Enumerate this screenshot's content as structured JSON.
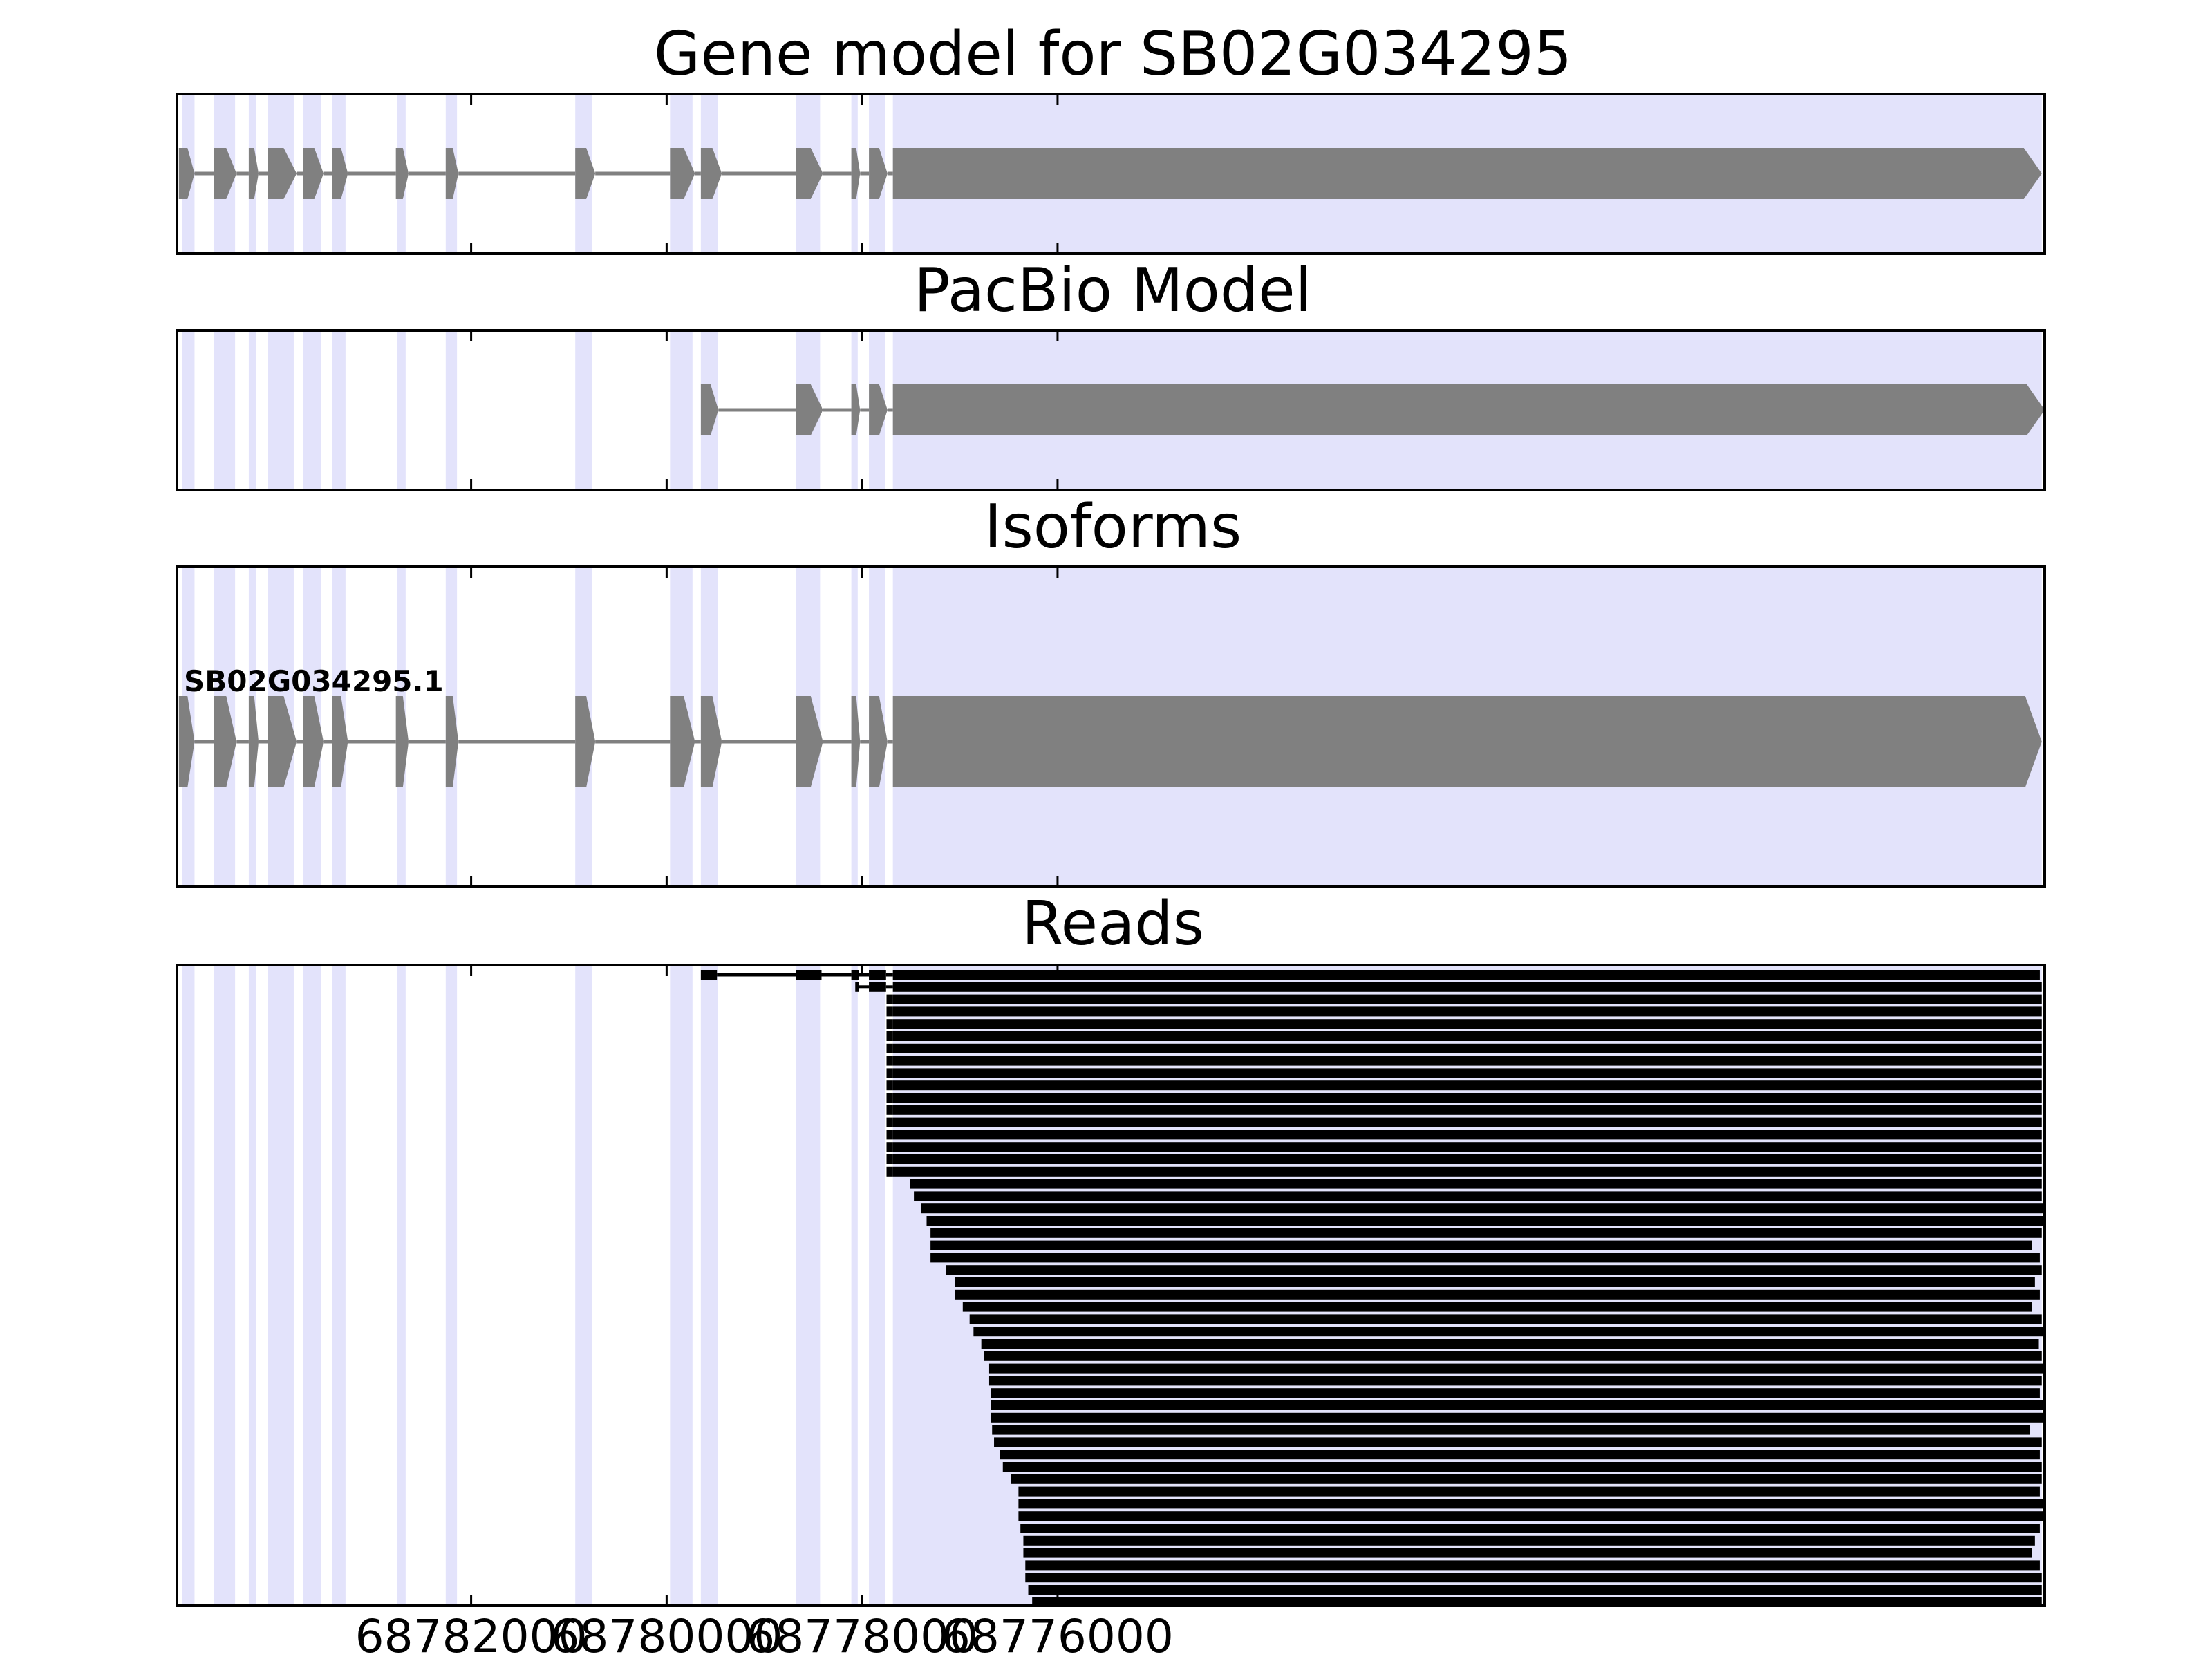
{
  "chart_data": {
    "type": "gene_model_tracks",
    "x_axis": {
      "range": [
        68785010,
        68765900
      ],
      "reversed": true,
      "ticks": [
        68782000,
        68780000,
        68778000,
        68776000
      ],
      "tick_labels": [
        "68782000",
        "68780000",
        "68778000",
        "68776000"
      ]
    },
    "exon_shading_color": "#e3e3fb",
    "feature_color": "#808080",
    "read_color": "#000000",
    "exon_regions": [
      [
        68784960,
        68784830
      ],
      [
        68784635,
        68784415
      ],
      [
        68784275,
        68784200
      ],
      [
        68784080,
        68783815
      ],
      [
        68783720,
        68783535
      ],
      [
        68783420,
        68783285
      ],
      [
        68782760,
        68782670
      ],
      [
        68782260,
        68782145
      ],
      [
        68780935,
        68780760
      ],
      [
        68779965,
        68779735
      ],
      [
        68779650,
        68779475
      ],
      [
        68778680,
        68778430
      ],
      [
        68778110,
        68778045
      ],
      [
        68777930,
        68777765
      ],
      [
        68777685,
        68765930
      ]
    ],
    "panels": [
      {
        "title": "Gene model for SB02G034295",
        "exons": [
          [
            68784990,
            68784830
          ],
          [
            68784635,
            68784400
          ],
          [
            68784275,
            68784175
          ],
          [
            68784080,
            68783785
          ],
          [
            68783720,
            68783510
          ],
          [
            68783420,
            68783260
          ],
          [
            68782770,
            68782640
          ],
          [
            68782260,
            68782130
          ],
          [
            68780935,
            68780730
          ],
          [
            68779965,
            68779710
          ],
          [
            68779650,
            68779435
          ],
          [
            68778680,
            68778400
          ],
          [
            68778110,
            68778020
          ],
          [
            68777930,
            68777740
          ],
          [
            68777685,
            68765930
          ]
        ]
      },
      {
        "title": "PacBio Model",
        "exons": [
          [
            68779650,
            68779470
          ],
          [
            68778680,
            68778400
          ],
          [
            68778110,
            68778020
          ],
          [
            68777930,
            68777740
          ],
          [
            68777685,
            68765900
          ]
        ]
      },
      {
        "title": "Isoforms",
        "isoforms": [
          {
            "name": "SB02G034295.1",
            "exons": [
              [
                68784990,
                68784830
              ],
              [
                68784635,
                68784400
              ],
              [
                68784275,
                68784175
              ],
              [
                68784080,
                68783785
              ],
              [
                68783720,
                68783510
              ],
              [
                68783420,
                68783260
              ],
              [
                68782770,
                68782640
              ],
              [
                68782260,
                68782130
              ],
              [
                68780935,
                68780730
              ],
              [
                68779965,
                68779710
              ],
              [
                68779650,
                68779435
              ],
              [
                68778680,
                68778400
              ],
              [
                68778110,
                68778020
              ],
              [
                68777930,
                68777740
              ],
              [
                68777685,
                68765930
              ]
            ]
          }
        ]
      },
      {
        "title": "Reads",
        "reads": [
          {
            "blocks": [
              [
                68779650,
                68779485
              ],
              [
                68778680,
                68778415
              ],
              [
                68778110,
                68778030
              ],
              [
                68777930,
                68777755
              ],
              [
                68777685,
                68765950
              ]
            ]
          },
          {
            "blocks": [
              [
                68778070,
                68778030
              ],
              [
                68777930,
                68777755
              ],
              [
                68777685,
                68765930
              ]
            ]
          },
          {
            "blocks": [
              [
                68777750,
                68777685
              ],
              [
                68777685,
                68765930
              ]
            ]
          },
          {
            "blocks": [
              [
                68777750,
                68777685
              ],
              [
                68777685,
                68765930
              ]
            ]
          },
          {
            "blocks": [
              [
                68777750,
                68777685
              ],
              [
                68777685,
                68765930
              ]
            ]
          },
          {
            "blocks": [
              [
                68777750,
                68777685
              ],
              [
                68777685,
                68765930
              ]
            ]
          },
          {
            "blocks": [
              [
                68777750,
                68777685
              ],
              [
                68777685,
                68765930
              ]
            ]
          },
          {
            "blocks": [
              [
                68777750,
                68777685
              ],
              [
                68777685,
                68765930
              ]
            ]
          },
          {
            "blocks": [
              [
                68777750,
                68777685
              ],
              [
                68777685,
                68765930
              ]
            ]
          },
          {
            "blocks": [
              [
                68777750,
                68777685
              ],
              [
                68777685,
                68765930
              ]
            ]
          },
          {
            "blocks": [
              [
                68777750,
                68777685
              ],
              [
                68777685,
                68765930
              ]
            ]
          },
          {
            "blocks": [
              [
                68777750,
                68777685
              ],
              [
                68777685,
                68765930
              ]
            ]
          },
          {
            "blocks": [
              [
                68777750,
                68777685
              ],
              [
                68777685,
                68765930
              ]
            ]
          },
          {
            "blocks": [
              [
                68777750,
                68777685
              ],
              [
                68777685,
                68765930
              ]
            ]
          },
          {
            "blocks": [
              [
                68777750,
                68777685
              ],
              [
                68777685,
                68765930
              ]
            ]
          },
          {
            "blocks": [
              [
                68777750,
                68777685
              ],
              [
                68777685,
                68765930
              ]
            ]
          },
          {
            "blocks": [
              [
                68777750,
                68777685
              ],
              [
                68777685,
                68765930
              ]
            ]
          },
          {
            "blocks": [
              [
                68777510,
                68765930
              ]
            ]
          },
          {
            "blocks": [
              [
                68777470,
                68765930
              ]
            ]
          },
          {
            "blocks": [
              [
                68777400,
                68765920
              ]
            ]
          },
          {
            "blocks": [
              [
                68777340,
                68765920
              ]
            ]
          },
          {
            "blocks": [
              [
                68777300,
                68765930
              ]
            ]
          },
          {
            "blocks": [
              [
                68777300,
                68766030
              ]
            ]
          },
          {
            "blocks": [
              [
                68777300,
                68765950
              ]
            ]
          },
          {
            "blocks": [
              [
                68777140,
                68765930
              ]
            ]
          },
          {
            "blocks": [
              [
                68777050,
                68766000
              ]
            ]
          },
          {
            "blocks": [
              [
                68777050,
                68765950
              ]
            ]
          },
          {
            "blocks": [
              [
                68776970,
                68766030
              ]
            ]
          },
          {
            "blocks": [
              [
                68776900,
                68765930
              ]
            ]
          },
          {
            "blocks": [
              [
                68776860,
                68765900
              ]
            ]
          },
          {
            "blocks": [
              [
                68776780,
                68765960
              ]
            ]
          },
          {
            "blocks": [
              [
                68776750,
                68765930
              ]
            ]
          },
          {
            "blocks": [
              [
                68776700,
                68765900
              ]
            ]
          },
          {
            "blocks": [
              [
                68776700,
                68765930
              ]
            ]
          },
          {
            "blocks": [
              [
                68776680,
                68765950
              ]
            ]
          },
          {
            "blocks": [
              [
                68776680,
                68765900
              ]
            ]
          },
          {
            "blocks": [
              [
                68776680,
                68765900
              ]
            ]
          },
          {
            "blocks": [
              [
                68776670,
                68766050
              ]
            ]
          },
          {
            "blocks": [
              [
                68776650,
                68765930
              ]
            ]
          },
          {
            "blocks": [
              [
                68776590,
                68765950
              ]
            ]
          },
          {
            "blocks": [
              [
                68776560,
                68765930
              ]
            ]
          },
          {
            "blocks": [
              [
                68776480,
                68765930
              ]
            ]
          },
          {
            "blocks": [
              [
                68776400,
                68765950
              ]
            ]
          },
          {
            "blocks": [
              [
                68776400,
                68765900
              ]
            ]
          },
          {
            "blocks": [
              [
                68776400,
                68765900
              ]
            ]
          },
          {
            "blocks": [
              [
                68776380,
                68765950
              ]
            ]
          },
          {
            "blocks": [
              [
                68776350,
                68766000
              ]
            ]
          },
          {
            "blocks": [
              [
                68776350,
                68766030
              ]
            ]
          },
          {
            "blocks": [
              [
                68776330,
                68765950
              ]
            ]
          },
          {
            "blocks": [
              [
                68776330,
                68765930
              ]
            ]
          },
          {
            "blocks": [
              [
                68776300,
                68765930
              ]
            ]
          },
          {
            "blocks": [
              [
                68776260,
                68765930
              ]
            ]
          }
        ]
      }
    ]
  }
}
